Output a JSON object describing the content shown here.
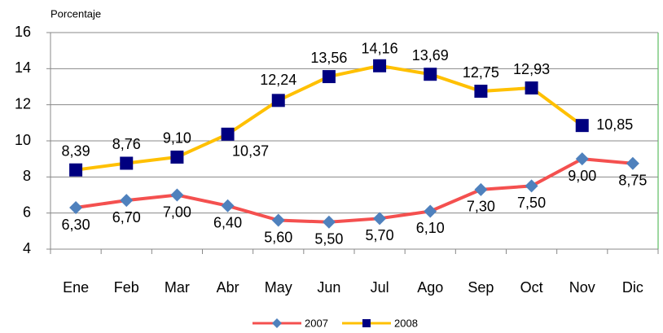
{
  "chart_data": {
    "type": "line",
    "y_label": "Porcentaje",
    "categories": [
      "Ene",
      "Feb",
      "Mar",
      "Abr",
      "May",
      "Jun",
      "Jul",
      "Ago",
      "Sep",
      "Oct",
      "Nov",
      "Dic"
    ],
    "series": [
      {
        "name": "2007",
        "color": "#f4504f",
        "marker": "diamond",
        "marker_color": "#4f81bd",
        "values": [
          6.3,
          6.7,
          7.0,
          6.4,
          5.6,
          5.5,
          5.7,
          6.1,
          7.3,
          7.5,
          9.0,
          8.75
        ],
        "value_labels": [
          "6,30",
          "6,70",
          "7,00",
          "6,40",
          "5,60",
          "5,50",
          "5,70",
          "6,10",
          "7,30",
          "7,50",
          "9,00",
          "8,75"
        ]
      },
      {
        "name": "2008",
        "color": "#ffc000",
        "marker": "square",
        "marker_color": "#000080",
        "values": [
          8.39,
          8.76,
          9.1,
          10.37,
          12.24,
          13.56,
          14.16,
          13.69,
          12.75,
          12.93,
          10.85,
          null
        ],
        "value_labels": [
          "8,39",
          "8,76",
          "9,10",
          "10,37",
          "12,24",
          "13,56",
          "14,16",
          "13,69",
          "12,75",
          "12,93",
          "10,85",
          null
        ]
      }
    ],
    "ylim": [
      4,
      16
    ],
    "yticks": [
      4,
      6,
      8,
      10,
      12,
      14,
      16
    ],
    "grid": true,
    "legend": "bottom"
  }
}
